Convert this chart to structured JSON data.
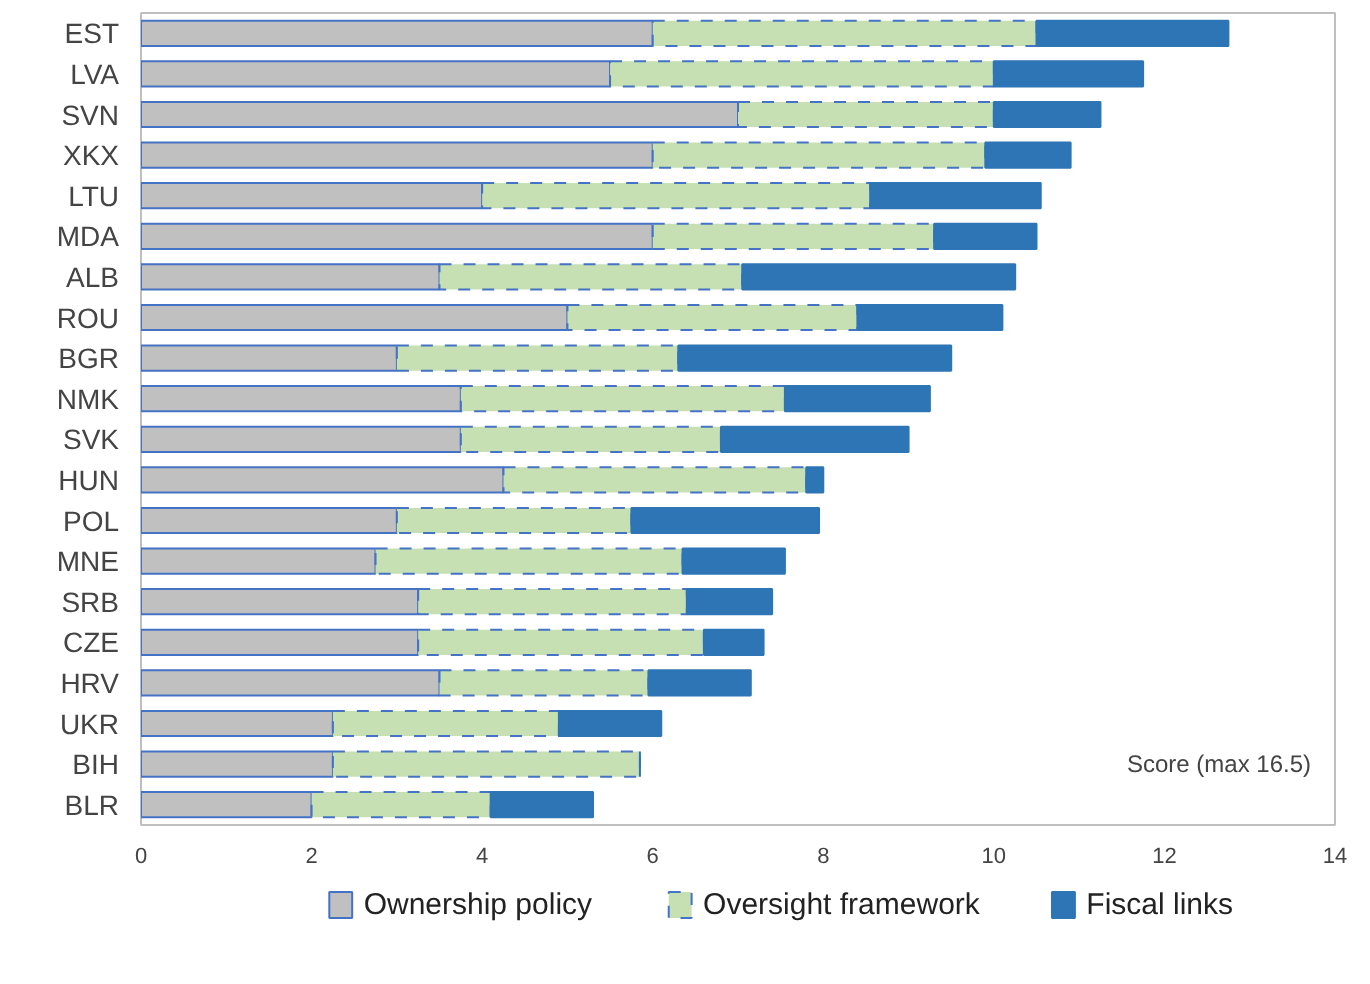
{
  "chart_data": {
    "type": "bar",
    "orientation": "horizontal",
    "stacked": true,
    "categories": [
      "EST",
      "LVA",
      "SVN",
      "XKX",
      "LTU",
      "MDA",
      "ALB",
      "ROU",
      "BGR",
      "NMK",
      "SVK",
      "HUN",
      "POL",
      "MNE",
      "SRB",
      "CZE",
      "HRV",
      "UKR",
      "BIH",
      "BLR"
    ],
    "series": [
      {
        "name": "Ownership policy",
        "color": "#c0c0c0",
        "values": [
          6,
          5.5,
          7,
          6,
          4,
          6,
          3.5,
          5,
          3,
          3.75,
          3.75,
          4.25,
          3,
          2.75,
          3.25,
          3.25,
          3.5,
          2.25,
          2.25,
          2
        ]
      },
      {
        "name": "Oversight framework",
        "color": "#c6e0b4",
        "values": [
          4.5,
          4.5,
          3,
          3.9,
          4.55,
          3.3,
          3.55,
          3.4,
          3.3,
          3.8,
          3.05,
          3.55,
          2.75,
          3.6,
          3.15,
          3.35,
          2.45,
          2.65,
          3.6,
          2.1
        ]
      },
      {
        "name": "Fiscal links",
        "color": "#2e75b6",
        "values": [
          2.25,
          1.75,
          1.25,
          1,
          2,
          1.2,
          3.2,
          1.7,
          3.2,
          1.7,
          2.2,
          0.2,
          2.2,
          1.2,
          1,
          0.7,
          1.2,
          1.2,
          0,
          1.2
        ]
      }
    ],
    "xlim": [
      0,
      14
    ],
    "xticks": [
      0,
      2,
      4,
      6,
      8,
      10,
      12,
      14
    ],
    "annotations": [
      "Score (max 16.5)"
    ],
    "grid": false,
    "legend": "bottom"
  }
}
